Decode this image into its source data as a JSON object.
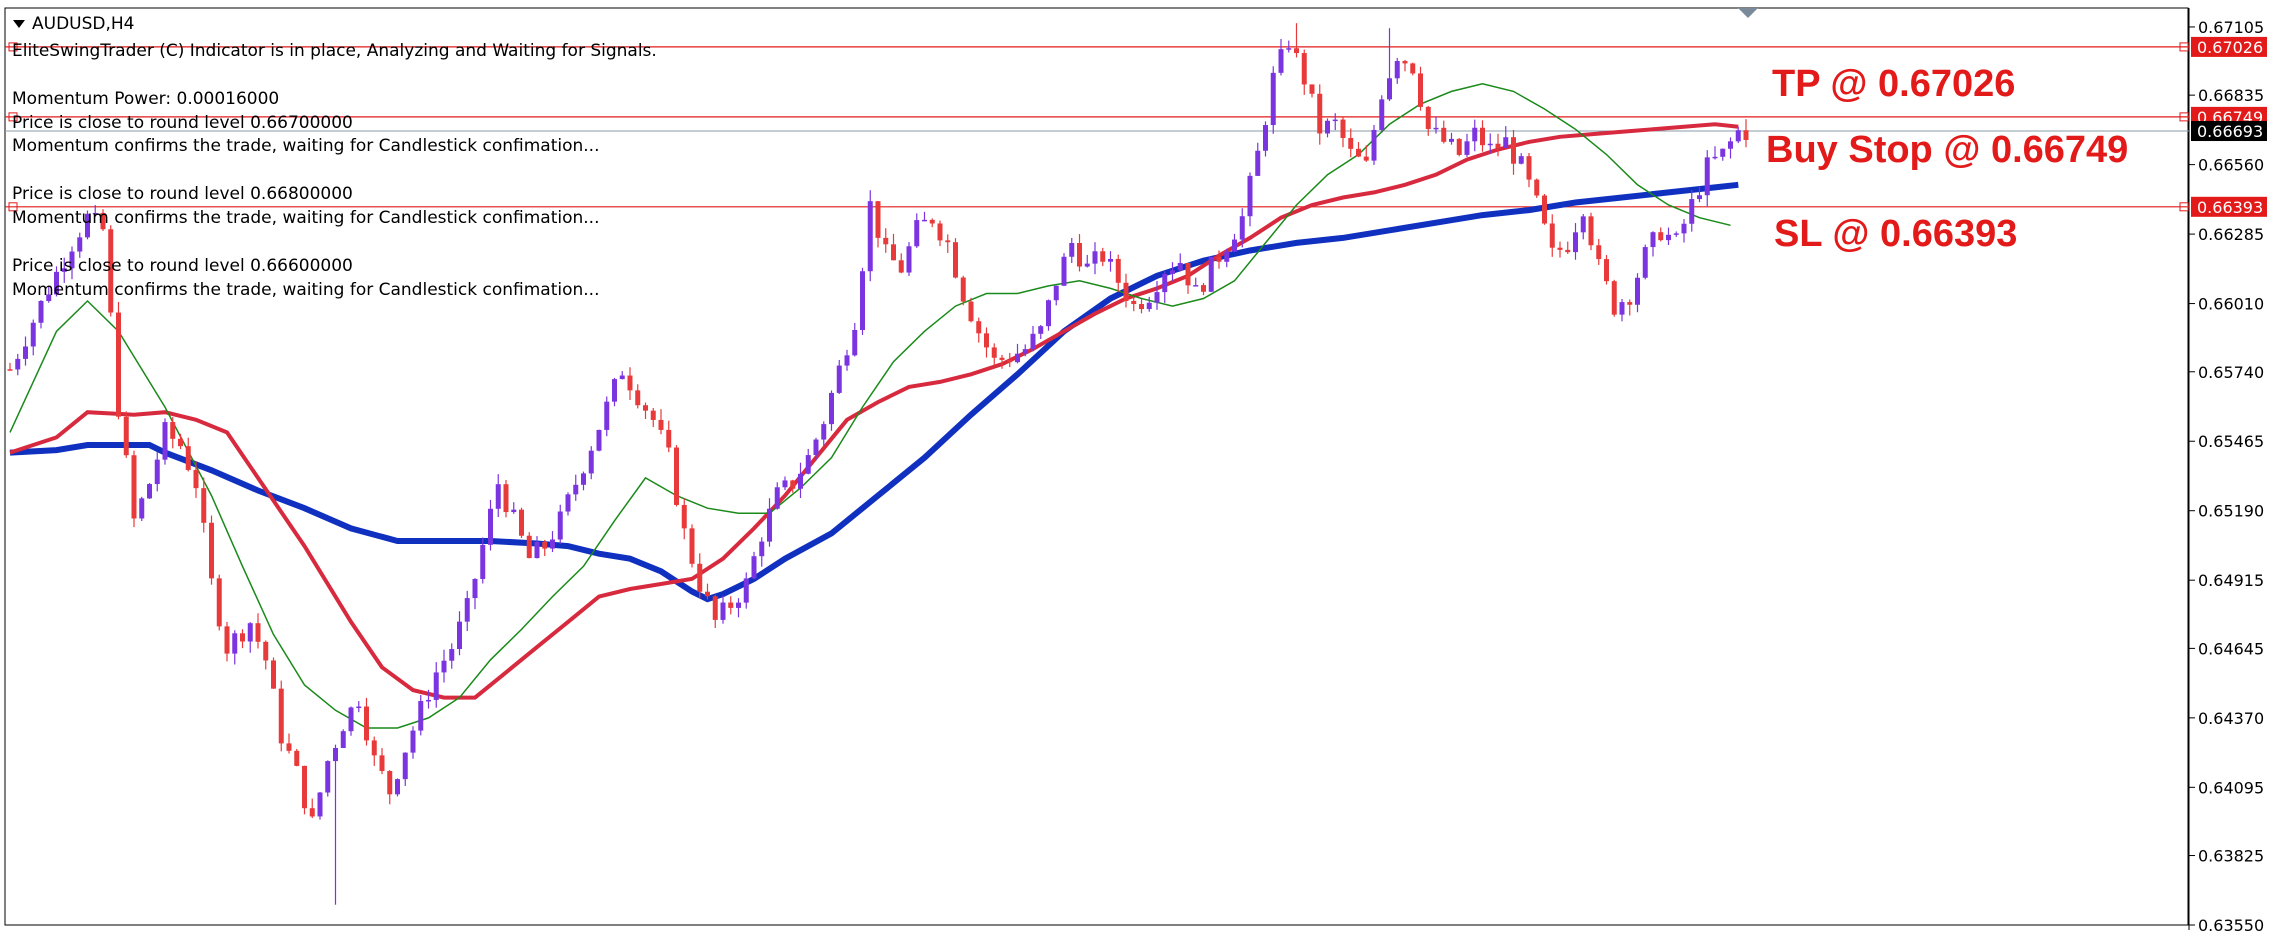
{
  "window": {
    "symbol_title": "AUDUSD,H4",
    "header_message": "EliteSwingTrader (C) Indicator is in place, Analyzing and Waiting for Signals."
  },
  "info_blocks": [
    [
      "Momentum Power: 0.00016000",
      "Price is close to round level 0.66700000",
      "Momentum confirms the trade, waiting for Candlestick confimation..."
    ],
    [
      "Price is close to round level 0.66800000",
      "Momentum confirms the trade, waiting for Candlestick confimation..."
    ],
    [
      "Price is close to round level 0.66600000",
      "Momentum confirms the trade, waiting for Candlestick confimation..."
    ]
  ],
  "trade_labels": {
    "tp": "TP @ 0.67026",
    "buy_stop": "Buy Stop @ 0.66749",
    "sl": "SL @ 0.66393"
  },
  "colors": {
    "bull_candle": "#7b35e0",
    "bear_candle": "#e83a3a",
    "ma_fast": "#1a8a1a",
    "ma_mid": "#d82a3e",
    "ma_slow": "#1030c0",
    "level_line": "#e31a1a",
    "current_price_tag": "#000000"
  },
  "chart_data": {
    "type": "candlestick",
    "symbol": "AUDUSD",
    "timeframe": "H4",
    "ylim": [
      0.6355,
      0.6718
    ],
    "y_ticks": [
      "0.67105",
      "0.66835",
      "0.66560",
      "0.66285",
      "0.66010",
      "0.65740",
      "0.65465",
      "0.65190",
      "0.64915",
      "0.64645",
      "0.64370",
      "0.64095",
      "0.63825",
      "0.63550"
    ],
    "price_tags": [
      {
        "label": "0.67026",
        "value": 0.67026,
        "style": "level"
      },
      {
        "label": "0.66749",
        "value": 0.66749,
        "style": "level"
      },
      {
        "label": "0.66693",
        "value": 0.66693,
        "style": "current"
      },
      {
        "label": "0.66393",
        "value": 0.66393,
        "style": "level"
      }
    ],
    "levels": [
      {
        "name": "TP",
        "value": 0.67026
      },
      {
        "name": "Buy Stop",
        "value": 0.66749
      },
      {
        "name": "SL",
        "value": 0.66393
      }
    ],
    "current_price": 0.66693,
    "close_path": [
      [
        0,
        0.6575
      ],
      [
        5,
        0.6607
      ],
      [
        8,
        0.6625
      ],
      [
        10,
        0.6635
      ],
      [
        12,
        0.663
      ],
      [
        14,
        0.656
      ],
      [
        16,
        0.6515
      ],
      [
        18,
        0.653
      ],
      [
        20,
        0.655
      ],
      [
        22,
        0.6545
      ],
      [
        24,
        0.653
      ],
      [
        26,
        0.649
      ],
      [
        28,
        0.6465
      ],
      [
        31,
        0.6475
      ],
      [
        33,
        0.646
      ],
      [
        35,
        0.643
      ],
      [
        37,
        0.6415
      ],
      [
        39,
        0.6395
      ],
      [
        41,
        0.642
      ],
      [
        43,
        0.6435
      ],
      [
        45,
        0.6445
      ],
      [
        47,
        0.642
      ],
      [
        49,
        0.6408
      ],
      [
        51,
        0.6425
      ],
      [
        53,
        0.644
      ],
      [
        55,
        0.6455
      ],
      [
        57,
        0.6465
      ],
      [
        59,
        0.648
      ],
      [
        61,
        0.6505
      ],
      [
        63,
        0.653
      ],
      [
        65,
        0.6515
      ],
      [
        67,
        0.65
      ],
      [
        69,
        0.6505
      ],
      [
        71,
        0.6515
      ],
      [
        73,
        0.653
      ],
      [
        75,
        0.6545
      ],
      [
        77,
        0.656
      ],
      [
        79,
        0.6575
      ],
      [
        81,
        0.6565
      ],
      [
        83,
        0.6555
      ],
      [
        85,
        0.654
      ],
      [
        87,
        0.651
      ],
      [
        89,
        0.649
      ],
      [
        91,
        0.6475
      ],
      [
        93,
        0.6482
      ],
      [
        95,
        0.649
      ],
      [
        97,
        0.651
      ],
      [
        99,
        0.6525
      ],
      [
        101,
        0.653
      ],
      [
        103,
        0.654
      ],
      [
        105,
        0.6555
      ],
      [
        107,
        0.6575
      ],
      [
        109,
        0.6595
      ],
      [
        111,
        0.664
      ],
      [
        113,
        0.662
      ],
      [
        115,
        0.6615
      ],
      [
        117,
        0.663
      ],
      [
        119,
        0.6635
      ],
      [
        121,
        0.6625
      ],
      [
        123,
        0.6605
      ],
      [
        125,
        0.659
      ],
      [
        127,
        0.6578
      ],
      [
        129,
        0.658
      ],
      [
        131,
        0.6583
      ],
      [
        133,
        0.659
      ],
      [
        135,
        0.661
      ],
      [
        137,
        0.6625
      ],
      [
        139,
        0.6615
      ],
      [
        141,
        0.662
      ],
      [
        143,
        0.661
      ],
      [
        145,
        0.66
      ],
      [
        147,
        0.6605
      ],
      [
        149,
        0.6615
      ],
      [
        151,
        0.6618
      ],
      [
        153,
        0.6605
      ],
      [
        155,
        0.6615
      ],
      [
        157,
        0.6625
      ],
      [
        159,
        0.6635
      ],
      [
        161,
        0.666
      ],
      [
        163,
        0.669
      ],
      [
        165,
        0.6705
      ],
      [
        167,
        0.669
      ],
      [
        169,
        0.667
      ],
      [
        171,
        0.6672
      ],
      [
        173,
        0.666
      ],
      [
        175,
        0.6655
      ],
      [
        177,
        0.6685
      ],
      [
        179,
        0.67
      ],
      [
        181,
        0.6695
      ],
      [
        183,
        0.667
      ],
      [
        185,
        0.6665
      ],
      [
        187,
        0.666
      ],
      [
        189,
        0.6668
      ],
      [
        191,
        0.6662
      ],
      [
        193,
        0.6665
      ],
      [
        195,
        0.6655
      ],
      [
        197,
        0.664
      ],
      [
        199,
        0.662
      ],
      [
        201,
        0.6625
      ],
      [
        203,
        0.664
      ],
      [
        205,
        0.6615
      ],
      [
        207,
        0.66
      ],
      [
        209,
        0.6605
      ],
      [
        211,
        0.662
      ],
      [
        213,
        0.663
      ],
      [
        215,
        0.6625
      ],
      [
        217,
        0.664
      ],
      [
        219,
        0.6655
      ],
      [
        221,
        0.666
      ],
      [
        223,
        0.6669
      ]
    ],
    "ma_fast": [
      [
        0,
        0.655
      ],
      [
        6,
        0.659
      ],
      [
        10,
        0.6602
      ],
      [
        14,
        0.659
      ],
      [
        20,
        0.656
      ],
      [
        26,
        0.6525
      ],
      [
        30,
        0.6497
      ],
      [
        34,
        0.647
      ],
      [
        38,
        0.645
      ],
      [
        42,
        0.644
      ],
      [
        46,
        0.6433
      ],
      [
        50,
        0.6433
      ],
      [
        54,
        0.6437
      ],
      [
        58,
        0.6445
      ],
      [
        62,
        0.646
      ],
      [
        66,
        0.6472
      ],
      [
        70,
        0.6485
      ],
      [
        74,
        0.6497
      ],
      [
        78,
        0.6515
      ],
      [
        82,
        0.6532
      ],
      [
        86,
        0.6525
      ],
      [
        90,
        0.652
      ],
      [
        94,
        0.6518
      ],
      [
        98,
        0.6518
      ],
      [
        102,
        0.6528
      ],
      [
        106,
        0.654
      ],
      [
        110,
        0.656
      ],
      [
        114,
        0.6578
      ],
      [
        118,
        0.659
      ],
      [
        122,
        0.66
      ],
      [
        126,
        0.6605
      ],
      [
        130,
        0.6605
      ],
      [
        134,
        0.6608
      ],
      [
        138,
        0.661
      ],
      [
        142,
        0.6607
      ],
      [
        146,
        0.6603
      ],
      [
        150,
        0.66
      ],
      [
        154,
        0.6603
      ],
      [
        158,
        0.661
      ],
      [
        162,
        0.6625
      ],
      [
        166,
        0.664
      ],
      [
        170,
        0.6652
      ],
      [
        174,
        0.666
      ],
      [
        178,
        0.6672
      ],
      [
        182,
        0.668
      ],
      [
        186,
        0.6685
      ],
      [
        190,
        0.6688
      ],
      [
        194,
        0.6685
      ],
      [
        198,
        0.6678
      ],
      [
        202,
        0.667
      ],
      [
        206,
        0.666
      ],
      [
        210,
        0.6648
      ],
      [
        214,
        0.664
      ],
      [
        218,
        0.6635
      ],
      [
        222,
        0.6632
      ]
    ],
    "ma_mid": [
      [
        0,
        0.6542
      ],
      [
        6,
        0.6548
      ],
      [
        10,
        0.6558
      ],
      [
        16,
        0.6557
      ],
      [
        20,
        0.6558
      ],
      [
        24,
        0.6555
      ],
      [
        28,
        0.655
      ],
      [
        32,
        0.6532
      ],
      [
        38,
        0.6505
      ],
      [
        44,
        0.6475
      ],
      [
        48,
        0.6457
      ],
      [
        52,
        0.6448
      ],
      [
        56,
        0.6445
      ],
      [
        60,
        0.6445
      ],
      [
        64,
        0.6455
      ],
      [
        68,
        0.6465
      ],
      [
        72,
        0.6475
      ],
      [
        76,
        0.6485
      ],
      [
        80,
        0.6488
      ],
      [
        84,
        0.649
      ],
      [
        88,
        0.6492
      ],
      [
        92,
        0.65
      ],
      [
        96,
        0.6512
      ],
      [
        100,
        0.6525
      ],
      [
        104,
        0.654
      ],
      [
        108,
        0.6555
      ],
      [
        112,
        0.6562
      ],
      [
        116,
        0.6568
      ],
      [
        120,
        0.657
      ],
      [
        124,
        0.6573
      ],
      [
        128,
        0.6577
      ],
      [
        132,
        0.6583
      ],
      [
        136,
        0.659
      ],
      [
        140,
        0.6597
      ],
      [
        144,
        0.6603
      ],
      [
        148,
        0.6607
      ],
      [
        152,
        0.6612
      ],
      [
        156,
        0.662
      ],
      [
        160,
        0.6627
      ],
      [
        164,
        0.6635
      ],
      [
        168,
        0.664
      ],
      [
        172,
        0.6643
      ],
      [
        176,
        0.6645
      ],
      [
        180,
        0.6648
      ],
      [
        184,
        0.6652
      ],
      [
        188,
        0.6658
      ],
      [
        192,
        0.6662
      ],
      [
        196,
        0.6665
      ],
      [
        200,
        0.6667
      ],
      [
        204,
        0.6668
      ],
      [
        208,
        0.6669
      ],
      [
        212,
        0.667
      ],
      [
        216,
        0.6671
      ],
      [
        220,
        0.6672
      ],
      [
        223,
        0.6671
      ]
    ],
    "ma_slow": [
      [
        0,
        0.6542
      ],
      [
        6,
        0.6543
      ],
      [
        10,
        0.6545
      ],
      [
        14,
        0.6545
      ],
      [
        18,
        0.6545
      ],
      [
        20,
        0.6542
      ],
      [
        26,
        0.6535
      ],
      [
        32,
        0.6527
      ],
      [
        38,
        0.652
      ],
      [
        44,
        0.6512
      ],
      [
        50,
        0.6507
      ],
      [
        56,
        0.6507
      ],
      [
        62,
        0.6507
      ],
      [
        68,
        0.6506
      ],
      [
        72,
        0.6505
      ],
      [
        76,
        0.6502
      ],
      [
        80,
        0.65
      ],
      [
        84,
        0.6495
      ],
      [
        88,
        0.6487
      ],
      [
        90,
        0.6484
      ],
      [
        92,
        0.6486
      ],
      [
        96,
        0.6492
      ],
      [
        100,
        0.65
      ],
      [
        106,
        0.651
      ],
      [
        112,
        0.6525
      ],
      [
        118,
        0.654
      ],
      [
        124,
        0.6557
      ],
      [
        130,
        0.6573
      ],
      [
        136,
        0.659
      ],
      [
        142,
        0.6603
      ],
      [
        148,
        0.6612
      ],
      [
        154,
        0.6618
      ],
      [
        160,
        0.6622
      ],
      [
        166,
        0.6625
      ],
      [
        172,
        0.6627
      ],
      [
        178,
        0.663
      ],
      [
        184,
        0.6633
      ],
      [
        190,
        0.6636
      ],
      [
        196,
        0.6638
      ],
      [
        202,
        0.6641
      ],
      [
        208,
        0.6643
      ],
      [
        214,
        0.6645
      ],
      [
        220,
        0.6647
      ],
      [
        223,
        0.6648
      ]
    ],
    "extreme_wicks": [
      {
        "index": 11,
        "high": 0.664
      },
      {
        "index": 42,
        "low": 0.6363
      },
      {
        "index": 166,
        "high": 0.6712
      },
      {
        "index": 178,
        "high": 0.671
      },
      {
        "index": 224,
        "high": 0.6674
      }
    ]
  }
}
